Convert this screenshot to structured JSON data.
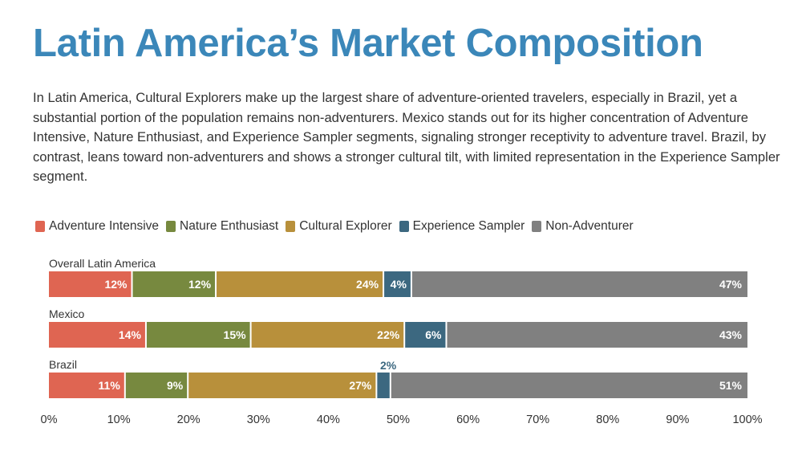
{
  "title": "Latin America’s Market Composition",
  "description": "In Latin America, Cultural Explorers make up the largest share of adventure-oriented travelers, especially in Brazil, yet a substantial portion of the population remains non-adventurers. Mexico stands out for its higher concentration of Adventure Intensive, Nature Enthusiast, and Experience Sampler segments, signaling stronger receptivity to adventure travel. Brazil, by contrast, leans toward non-adventurers and shows a stronger cultural tilt, with limited representation in the Experience Sampler segment.",
  "chart_data": {
    "type": "bar",
    "orientation": "horizontal-stacked-100",
    "categories": [
      "Overall Latin America",
      "Mexico",
      "Brazil"
    ],
    "series": [
      {
        "name": "Adventure Intensive",
        "color": "#df6552",
        "values": [
          12,
          14,
          11
        ]
      },
      {
        "name": "Nature Enthusiast",
        "color": "#77893f",
        "values": [
          12,
          15,
          9
        ]
      },
      {
        "name": "Cultural Explorer",
        "color": "#b8903b",
        "values": [
          24,
          22,
          27
        ]
      },
      {
        "name": "Experience Sampler",
        "color": "#3c6880",
        "values": [
          4,
          6,
          2
        ]
      },
      {
        "name": "Non-Adventurer",
        "color": "#808080",
        "values": [
          47,
          43,
          51
        ]
      }
    ],
    "xlim": [
      0,
      100
    ],
    "xticks": [
      "0%",
      "10%",
      "20%",
      "30%",
      "40%",
      "50%",
      "60%",
      "70%",
      "80%",
      "90%",
      "100%"
    ],
    "legend": "top-left",
    "grid": false
  }
}
